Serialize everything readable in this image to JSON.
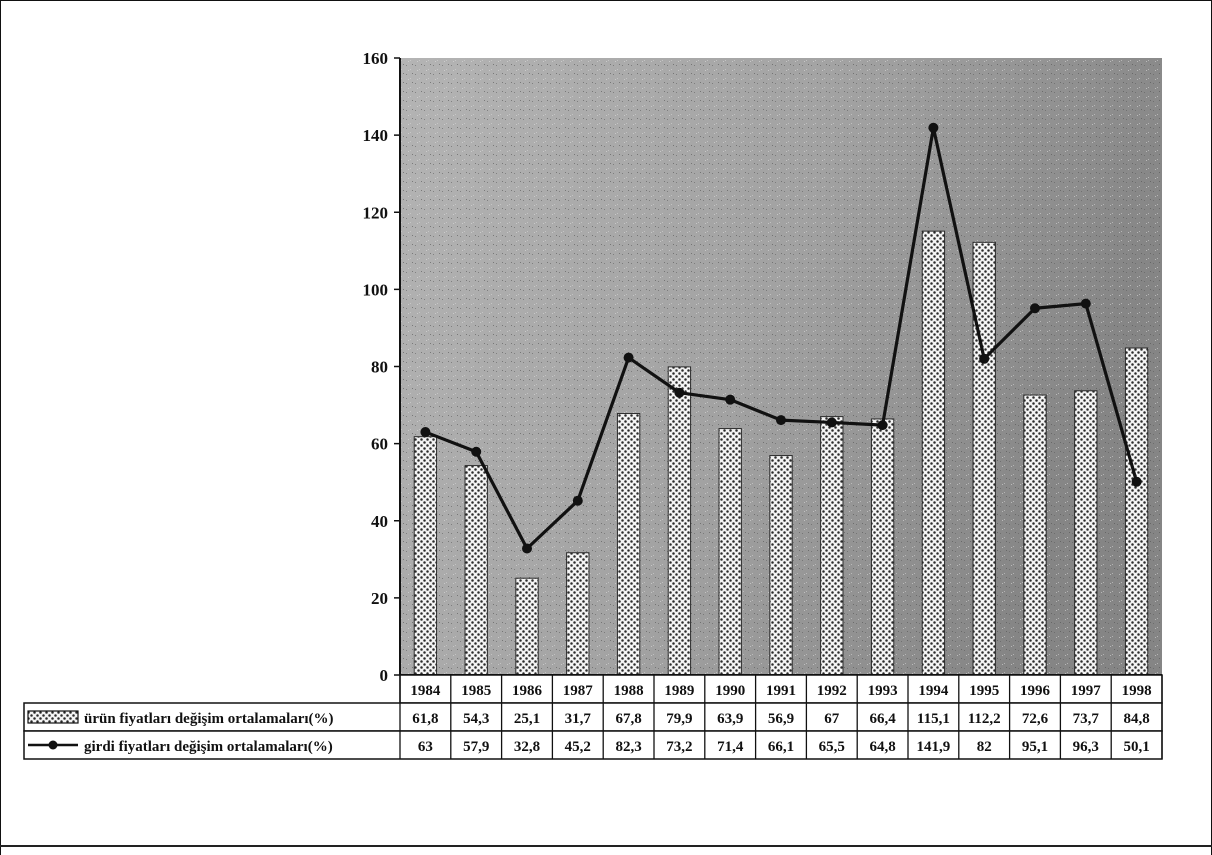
{
  "chart_data": {
    "type": "bar",
    "categories": [
      "1984",
      "1985",
      "1986",
      "1987",
      "1988",
      "1989",
      "1990",
      "1991",
      "1992",
      "1993",
      "1994",
      "1995",
      "1996",
      "1997",
      "1998"
    ],
    "series": [
      {
        "name": "ürün fiyatları değişim ortalamaları(%)",
        "kind": "bar",
        "values": [
          61.8,
          54.3,
          25.1,
          31.7,
          67.8,
          79.9,
          63.9,
          56.9,
          67,
          66.4,
          115.1,
          112.2,
          72.6,
          73.7,
          84.8
        ],
        "labels": [
          "61,8",
          "54,3",
          "25,1",
          "31,7",
          "67,8",
          "79,9",
          "63,9",
          "56,9",
          "67",
          "66,4",
          "115,1",
          "112,2",
          "72,6",
          "73,7",
          "84,8"
        ]
      },
      {
        "name": "girdi fiyatları değişim ortalamaları(%)",
        "kind": "line",
        "values": [
          63,
          57.9,
          32.8,
          45.2,
          82.3,
          73.2,
          71.4,
          66.1,
          65.5,
          64.8,
          141.9,
          82,
          95.1,
          96.3,
          50.1
        ],
        "labels": [
          "63",
          "57,9",
          "32,8",
          "45,2",
          "82,3",
          "73,2",
          "71,4",
          "66,1",
          "65,5",
          "64,8",
          "141,9",
          "82",
          "95,1",
          "96,3",
          "50,1"
        ]
      }
    ],
    "ylim": [
      0,
      160
    ],
    "yticks": [
      0,
      20,
      40,
      60,
      80,
      100,
      120,
      140,
      160
    ],
    "legend": "data table below the plot",
    "grid": false,
    "colors": {
      "plot_background": "#9c9c9c",
      "bar_fill": "#f2f2f2",
      "bar_dots": "#2a2a2a",
      "line": "#111111"
    }
  }
}
